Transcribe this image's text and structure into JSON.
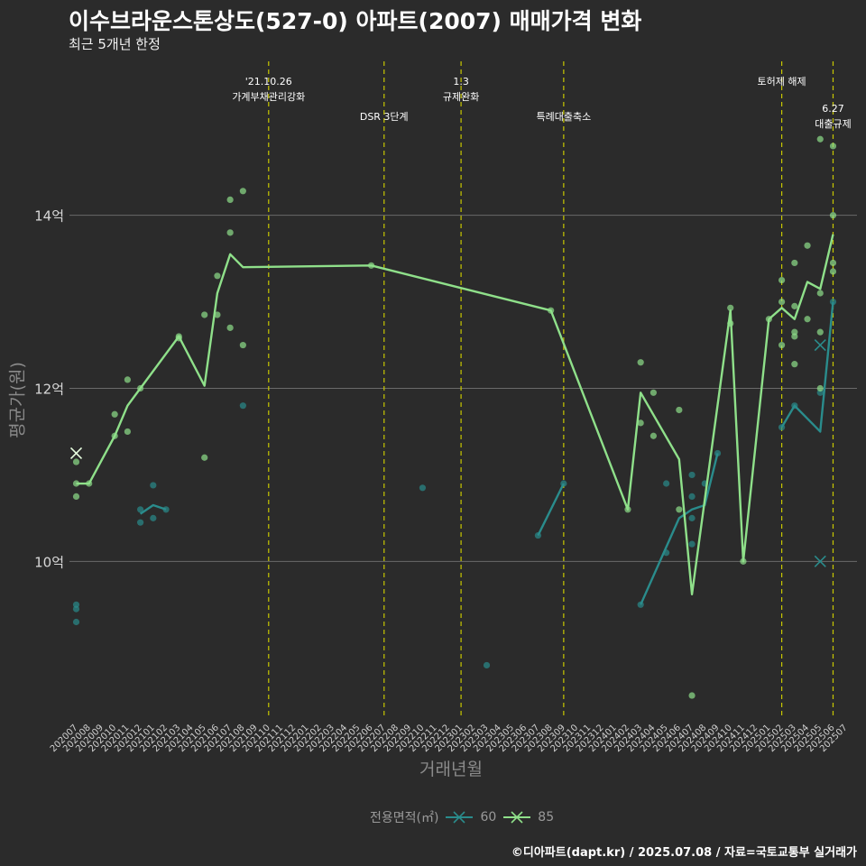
{
  "header": {
    "title": "이수브라운스톤상도(527-0) 아파트(2007) 매매가격 변화",
    "subtitle": "최근 5개년 한정"
  },
  "footer": {
    "caption": "©디아파트(dapt.kr) / 2025.07.08 / 자료=국토교통부 실거래가"
  },
  "legend": {
    "title": "전용면적(㎡)"
  },
  "colors": {
    "background": "#2b2b2b",
    "grid": "#6a6a6a",
    "event_line": "#c8c800",
    "series_60": "#2a8c8c",
    "series_85": "#8fe08a"
  },
  "chart_data": {
    "type": "line",
    "xlabel": "거래년월",
    "ylabel": "평균가(원)",
    "ylim": [
      8.2,
      15.8
    ],
    "yticks": [
      {
        "value": 10,
        "label": "10억"
      },
      {
        "value": 12,
        "label": "12억"
      },
      {
        "value": 14,
        "label": "14억"
      }
    ],
    "x_categories": [
      "202007",
      "202008",
      "202009",
      "202010",
      "202011",
      "202012",
      "202101",
      "202102",
      "202103",
      "202104",
      "202105",
      "202106",
      "202107",
      "202108",
      "202109",
      "202110",
      "202111",
      "202112",
      "202201",
      "202202",
      "202203",
      "202204",
      "202205",
      "202206",
      "202207",
      "202208",
      "202209",
      "202210",
      "202211",
      "202212",
      "202301",
      "202302",
      "202303",
      "202304",
      "202305",
      "202306",
      "202307",
      "202308",
      "202309",
      "202310",
      "202311",
      "202312",
      "202401",
      "202402",
      "202403",
      "202404",
      "202405",
      "202406",
      "202407",
      "202408",
      "202409",
      "202410",
      "202411",
      "202412",
      "202501",
      "202502",
      "202503",
      "202504",
      "202505",
      "202506",
      "202507"
    ],
    "events": [
      {
        "x": "202110",
        "label": "'21.10.26\n가계부채관리강화",
        "row": 1
      },
      {
        "x": "202207",
        "label": "DSR 3단계",
        "row": 2
      },
      {
        "x": "202301",
        "label": "1.3\n규제완화",
        "row": 1
      },
      {
        "x": "202309",
        "label": "특례대출축소",
        "row": 2
      },
      {
        "x": "202502",
        "label": "토허제 해제",
        "row": 1
      },
      {
        "x": "202506",
        "label": "6.27\n대출규제",
        "row": 3
      }
    ],
    "series": [
      {
        "name": "60",
        "line": [
          {
            "x": "202012",
            "y": 10.55
          },
          {
            "x": "202101",
            "y": 10.65
          },
          {
            "x": "202102",
            "y": 10.6
          },
          {
            "x": null,
            "y": null
          },
          {
            "x": "202307",
            "y": 10.3
          },
          {
            "x": "202309",
            "y": 10.9
          },
          {
            "x": null,
            "y": null
          },
          {
            "x": "202403",
            "y": 9.5
          },
          {
            "x": "202406",
            "y": 10.5
          },
          {
            "x": "202407",
            "y": 10.6
          },
          {
            "x": "202408",
            "y": 10.65
          },
          {
            "x": "202409",
            "y": 11.25
          },
          {
            "x": null,
            "y": null
          },
          {
            "x": "202502",
            "y": 11.55
          },
          {
            "x": "202503",
            "y": 11.8
          },
          {
            "x": "202505",
            "y": 11.5
          },
          {
            "x": "202506",
            "y": 13.0
          }
        ],
        "points": [
          {
            "x": "202007",
            "y": 9.5
          },
          {
            "x": "202007",
            "y": 9.45
          },
          {
            "x": "202007",
            "y": 9.3
          },
          {
            "x": "202012",
            "y": 10.6
          },
          {
            "x": "202012",
            "y": 10.45
          },
          {
            "x": "202101",
            "y": 10.5
          },
          {
            "x": "202101",
            "y": 10.88
          },
          {
            "x": "202102",
            "y": 10.6
          },
          {
            "x": "202108",
            "y": 11.8
          },
          {
            "x": "202210",
            "y": 10.85
          },
          {
            "x": "202303",
            "y": 8.8
          },
          {
            "x": "202307",
            "y": 10.3
          },
          {
            "x": "202309",
            "y": 10.9
          },
          {
            "x": "202403",
            "y": 9.5
          },
          {
            "x": "202405",
            "y": 10.1
          },
          {
            "x": "202405",
            "y": 10.9
          },
          {
            "x": "202407",
            "y": 10.75
          },
          {
            "x": "202407",
            "y": 10.5
          },
          {
            "x": "202407",
            "y": 10.2
          },
          {
            "x": "202407",
            "y": 11.0
          },
          {
            "x": "202408",
            "y": 10.9
          },
          {
            "x": "202409",
            "y": 11.25
          },
          {
            "x": "202502",
            "y": 11.55
          },
          {
            "x": "202503",
            "y": 11.8
          },
          {
            "x": "202505",
            "y": 11.95
          },
          {
            "x": "202506",
            "y": 13.0
          }
        ],
        "cancelled": [
          {
            "x": "202505",
            "y": 12.5
          },
          {
            "x": "202505",
            "y": 10.0
          }
        ]
      },
      {
        "name": "85",
        "line": [
          {
            "x": "202007",
            "y": 10.9
          },
          {
            "x": "202008",
            "y": 10.9
          },
          {
            "x": "202010",
            "y": 11.45
          },
          {
            "x": "202011",
            "y": 11.8
          },
          {
            "x": "202012",
            "y": 12.0
          },
          {
            "x": "202103",
            "y": 12.6
          },
          {
            "x": "202105",
            "y": 12.03
          },
          {
            "x": "202106",
            "y": 13.1
          },
          {
            "x": "202107",
            "y": 13.55
          },
          {
            "x": "202108",
            "y": 13.4
          },
          {
            "x": "202206",
            "y": 13.42
          },
          {
            "x": "202308",
            "y": 12.9
          },
          {
            "x": "202402",
            "y": 10.6
          },
          {
            "x": "202403",
            "y": 11.95
          },
          {
            "x": "202406",
            "y": 11.18
          },
          {
            "x": "202407",
            "y": 9.62
          },
          {
            "x": "202410",
            "y": 12.9
          },
          {
            "x": "202411",
            "y": 10.0
          },
          {
            "x": "202501",
            "y": 12.8
          },
          {
            "x": "202502",
            "y": 12.93
          },
          {
            "x": "202503",
            "y": 12.8
          },
          {
            "x": "202504",
            "y": 13.23
          },
          {
            "x": "202505",
            "y": 13.15
          },
          {
            "x": "202506",
            "y": 13.78
          }
        ],
        "points": [
          {
            "x": "202007",
            "y": 10.9
          },
          {
            "x": "202007",
            "y": 10.75
          },
          {
            "x": "202007",
            "y": 11.15
          },
          {
            "x": "202008",
            "y": 10.9
          },
          {
            "x": "202010",
            "y": 11.7
          },
          {
            "x": "202010",
            "y": 11.45
          },
          {
            "x": "202011",
            "y": 11.5
          },
          {
            "x": "202011",
            "y": 12.1
          },
          {
            "x": "202012",
            "y": 12.0
          },
          {
            "x": "202103",
            "y": 12.6
          },
          {
            "x": "202103",
            "y": 12.58
          },
          {
            "x": "202105",
            "y": 11.2
          },
          {
            "x": "202105",
            "y": 12.85
          },
          {
            "x": "202106",
            "y": 13.3
          },
          {
            "x": "202106",
            "y": 12.85
          },
          {
            "x": "202107",
            "y": 13.8
          },
          {
            "x": "202107",
            "y": 14.18
          },
          {
            "x": "202107",
            "y": 12.7
          },
          {
            "x": "202108",
            "y": 14.28
          },
          {
            "x": "202108",
            "y": 12.5
          },
          {
            "x": "202206",
            "y": 13.42
          },
          {
            "x": "202308",
            "y": 12.9
          },
          {
            "x": "202402",
            "y": 10.6
          },
          {
            "x": "202403",
            "y": 12.3
          },
          {
            "x": "202403",
            "y": 11.6
          },
          {
            "x": "202404",
            "y": 11.95
          },
          {
            "x": "202404",
            "y": 11.45
          },
          {
            "x": "202406",
            "y": 11.75
          },
          {
            "x": "202406",
            "y": 10.6
          },
          {
            "x": "202407",
            "y": 8.45
          },
          {
            "x": "202410",
            "y": 12.93
          },
          {
            "x": "202410",
            "y": 12.75
          },
          {
            "x": "202411",
            "y": 10.0
          },
          {
            "x": "202501",
            "y": 12.8
          },
          {
            "x": "202502",
            "y": 13.25
          },
          {
            "x": "202502",
            "y": 13.0
          },
          {
            "x": "202502",
            "y": 12.5
          },
          {
            "x": "202503",
            "y": 13.45
          },
          {
            "x": "202503",
            "y": 12.95
          },
          {
            "x": "202503",
            "y": 12.65
          },
          {
            "x": "202503",
            "y": 12.6
          },
          {
            "x": "202503",
            "y": 12.28
          },
          {
            "x": "202504",
            "y": 13.65
          },
          {
            "x": "202504",
            "y": 12.8
          },
          {
            "x": "202505",
            "y": 14.88
          },
          {
            "x": "202505",
            "y": 13.1
          },
          {
            "x": "202505",
            "y": 12.65
          },
          {
            "x": "202505",
            "y": 12.0
          },
          {
            "x": "202506",
            "y": 14.0
          },
          {
            "x": "202506",
            "y": 13.45
          },
          {
            "x": "202506",
            "y": 13.35
          },
          {
            "x": "202506",
            "y": 14.8
          }
        ],
        "cancelled": [
          {
            "x": "202007",
            "y": 11.25
          }
        ]
      }
    ]
  }
}
